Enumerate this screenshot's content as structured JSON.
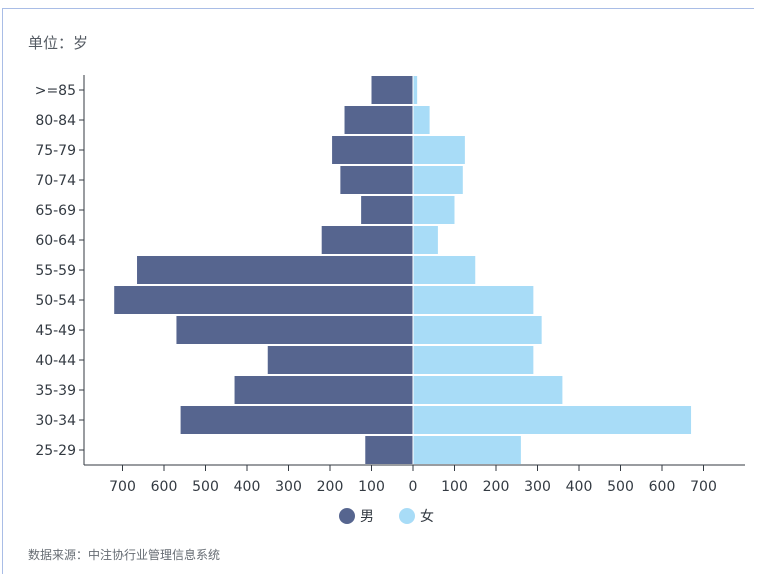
{
  "header": {
    "unit_label": "单位：岁"
  },
  "footer": {
    "source_note": "数据来源：中注协行业管理信息系统"
  },
  "chart_data": {
    "type": "bar",
    "orientation": "horizontal-population-pyramid",
    "categories": [
      ">=85",
      "80-84",
      "75-79",
      "70-74",
      "65-69",
      "60-64",
      "55-59",
      "50-54",
      "45-49",
      "40-44",
      "35-39",
      "30-34",
      "25-29"
    ],
    "series": [
      {
        "name": "男",
        "color": "#56658f",
        "values": [
          100,
          165,
          195,
          175,
          125,
          220,
          665,
          720,
          570,
          350,
          430,
          560,
          115
        ]
      },
      {
        "name": "女",
        "color": "#a8dcf7",
        "values": [
          10,
          40,
          125,
          120,
          100,
          60,
          150,
          290,
          310,
          290,
          360,
          670,
          260
        ]
      }
    ],
    "x_tick_labels": [
      "700",
      "600",
      "500",
      "400",
      "300",
      "200",
      "100",
      "0",
      "100",
      "200",
      "300",
      "400",
      "500",
      "600",
      "700"
    ],
    "xlim": [
      -700,
      700
    ],
    "legend_position": "bottom",
    "grid": false
  }
}
